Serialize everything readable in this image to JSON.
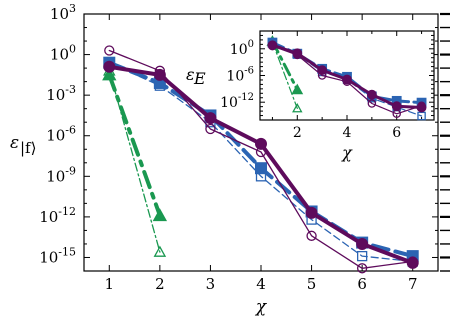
{
  "chart_data": [
    {
      "type": "line",
      "xlabel": "χ",
      "ylabel": "ε|f⟩",
      "xlim": [
        0.5,
        7.5
      ],
      "ylim_log10": [
        -16,
        3
      ],
      "yscale": "log",
      "x_ticks": [
        1,
        2,
        3,
        4,
        5,
        6,
        7
      ],
      "y_ticks": [
        {
          "exp": 3,
          "label": "10",
          "sup": "3"
        },
        {
          "exp": 0,
          "label": "10",
          "sup": "0"
        },
        {
          "exp": -3,
          "label": "10",
          "sup": "-3"
        },
        {
          "exp": -6,
          "label": "10",
          "sup": "-6"
        },
        {
          "exp": -9,
          "label": "10",
          "sup": "-9"
        },
        {
          "exp": -12,
          "label": "10",
          "sup": "-12"
        },
        {
          "exp": -15,
          "label": "10",
          "sup": "-15"
        }
      ],
      "grid": false,
      "series": [
        {
          "color": "#1a9850",
          "style": "dashdot",
          "width": 4,
          "marker": "triangle",
          "filled": true,
          "x": [
            1,
            2
          ],
          "y_log10": [
            -1.5,
            -11.9
          ]
        },
        {
          "color": "#1a9850",
          "style": "dashdot",
          "width": 1.3,
          "marker": "triangle",
          "filled": false,
          "x": [
            1,
            2
          ],
          "y_log10": [
            -1.2,
            -14.6
          ]
        },
        {
          "color": "#2b64b3",
          "style": "dashed",
          "width": 4,
          "marker": "square",
          "filled": true,
          "x": [
            1,
            2,
            3,
            4,
            5,
            6,
            7
          ],
          "y_log10": [
            -0.6,
            -2.1,
            -4.5,
            -8.4,
            -11.6,
            -13.9,
            -14.9
          ]
        },
        {
          "color": "#2b64b3",
          "style": "dashed",
          "width": 1.3,
          "marker": "square",
          "filled": false,
          "x": [
            1,
            2,
            3,
            4,
            5,
            6,
            7
          ],
          "y_log10": [
            -0.6,
            -2.3,
            -5.0,
            -9.0,
            -12.2,
            -14.9,
            -15.3
          ]
        },
        {
          "color": "#5e0b5c",
          "style": "solid",
          "width": 4,
          "marker": "circle",
          "filled": true,
          "x": [
            1,
            2,
            3,
            4,
            5,
            6,
            7
          ],
          "y_log10": [
            -0.9,
            -1.5,
            -4.7,
            -6.6,
            -11.7,
            -14.0,
            -15.4
          ]
        },
        {
          "color": "#5e0b5c",
          "style": "solid",
          "width": 1.3,
          "marker": "circle",
          "filled": false,
          "x": [
            1,
            2,
            3,
            4,
            5,
            6,
            7
          ],
          "y_log10": [
            0.3,
            -1.2,
            -5.5,
            -7.2,
            -13.4,
            -15.8,
            -15.3
          ]
        }
      ]
    },
    {
      "type": "line",
      "xlabel": "χ",
      "ylabel": "εE",
      "xlim": [
        0.5,
        7.5
      ],
      "ylim_log10": [
        -16,
        4
      ],
      "yscale": "log",
      "x_ticks": [
        2,
        4,
        6
      ],
      "y_ticks": [
        {
          "exp": 0,
          "label": "10",
          "sup": "0"
        },
        {
          "exp": -6,
          "label": "10",
          "sup": "-6"
        },
        {
          "exp": -12,
          "label": "10",
          "sup": "-12"
        }
      ],
      "grid": false,
      "series": [
        {
          "color": "#1a9850",
          "style": "dashdot",
          "width": 3,
          "marker": "triangle",
          "filled": true,
          "x": [
            1,
            2
          ],
          "y_log10": [
            1.7,
            -9.2
          ]
        },
        {
          "color": "#1a9850",
          "style": "dashdot",
          "width": 1.2,
          "marker": "triangle",
          "filled": false,
          "x": [
            1,
            2
          ],
          "y_log10": [
            1.5,
            -13.4
          ]
        },
        {
          "color": "#2b64b3",
          "style": "dashed",
          "width": 3,
          "marker": "square",
          "filled": true,
          "x": [
            1,
            2,
            3,
            4,
            5,
            6,
            7
          ],
          "y_log10": [
            1.4,
            -1.1,
            -4.5,
            -6.3,
            -10.7,
            -11.7,
            -12.1
          ]
        },
        {
          "color": "#2b64b3",
          "style": "dashed",
          "width": 1.2,
          "marker": "square",
          "filled": false,
          "x": [
            1,
            2,
            3,
            4,
            5,
            6,
            7
          ],
          "y_log10": [
            1.3,
            -1.3,
            -5.2,
            -6.9,
            -11.1,
            -13.1,
            -15.1
          ]
        },
        {
          "color": "#5e0b5c",
          "style": "solid",
          "width": 3,
          "marker": "circle",
          "filled": true,
          "x": [
            1,
            2,
            3,
            4,
            5,
            6,
            7
          ],
          "y_log10": [
            0.8,
            -1.0,
            -4.8,
            -6.9,
            -10.3,
            -12.9,
            -13.2
          ]
        },
        {
          "color": "#5e0b5c",
          "style": "solid",
          "width": 1.2,
          "marker": "circle",
          "filled": false,
          "x": [
            1,
            2,
            3,
            4,
            5,
            6,
            7
          ],
          "y_log10": [
            0.6,
            -1.4,
            -6.0,
            -7.4,
            -12.3,
            -14.6,
            -12.8
          ]
        }
      ]
    }
  ]
}
